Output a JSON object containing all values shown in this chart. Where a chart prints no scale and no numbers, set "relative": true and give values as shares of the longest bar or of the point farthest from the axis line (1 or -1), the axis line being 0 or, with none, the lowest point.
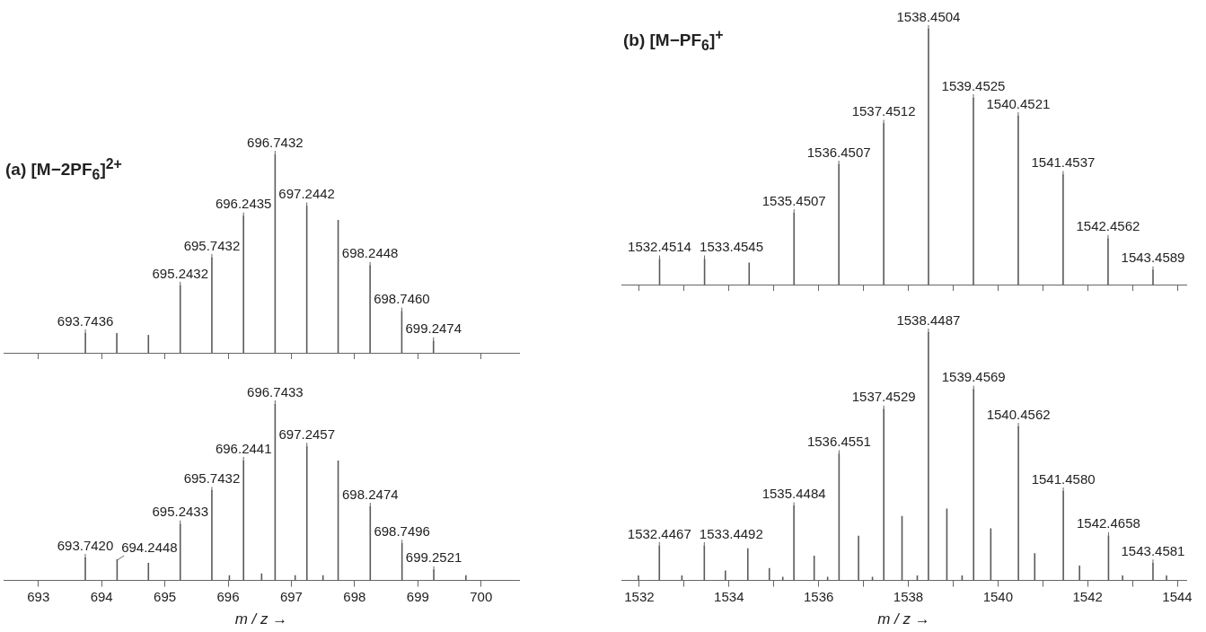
{
  "chart_data": [
    {
      "type": "bar",
      "title": "(a) [M−2PF$_{6}$]$^{2+}$",
      "relative": true,
      "color": "#5a5a5a",
      "tick_labels": false,
      "xlim": [
        692.45,
        700.6
      ],
      "xticks": [
        {
          "value": 693,
          "label": null
        },
        {
          "value": 694,
          "label": null
        },
        {
          "value": 695,
          "label": null
        },
        {
          "value": 696,
          "label": null
        },
        {
          "value": 697,
          "label": null
        },
        {
          "value": 698,
          "label": null
        },
        {
          "value": 699,
          "label": null
        },
        {
          "value": 700,
          "label": null
        }
      ],
      "x": [
        693.7436,
        694.24,
        694.74,
        695.2432,
        695.7432,
        696.2435,
        696.7432,
        697.2442,
        697.74,
        698.2448,
        698.746,
        699.2474
      ],
      "values": [
        0.1,
        0.1,
        0.09,
        0.34,
        0.48,
        0.69,
        1,
        0.74,
        0.67,
        0.44,
        0.21,
        0.06
      ],
      "annotations": [
        {
          "text": "693.7436",
          "x": 693.7436,
          "y": 0.1
        },
        {
          "text": "695.2432",
          "x": 695.2432,
          "y": 0.34
        },
        {
          "text": "695.7432",
          "x": 695.7432,
          "y": 0.48
        },
        {
          "text": "696.2435",
          "x": 696.2435,
          "y": 0.69
        },
        {
          "text": "696.7432",
          "x": 696.7432,
          "y": 1
        },
        {
          "text": "697.2442",
          "x": 697.2442,
          "y": 0.74
        },
        {
          "text": "698.2448",
          "x": 698.2448,
          "y": 0.44
        },
        {
          "text": "698.7460",
          "x": 698.746,
          "y": 0.21
        },
        {
          "text": "699.2474",
          "x": 699.2474,
          "y": 0.06
        }
      ]
    },
    {
      "type": "bar",
      "relative": true,
      "color": "#5a5a5a",
      "xlabel": "m / z →",
      "xlim": [
        692.45,
        700.6
      ],
      "xticks": [
        693,
        694,
        695,
        696,
        697,
        698,
        699,
        700
      ],
      "x": [
        693.742,
        694.2448,
        694.74,
        695.2433,
        695.7432,
        696.02,
        696.2441,
        696.53,
        696.7433,
        697.06,
        697.2457,
        697.5,
        697.74,
        698.2474,
        698.7496,
        699.2521,
        699.76
      ],
      "values": [
        0.13,
        0.12,
        0.1,
        0.32,
        0.51,
        0.03,
        0.68,
        0.04,
        1,
        0.03,
        0.76,
        0.03,
        0.68,
        0.42,
        0.21,
        0.06,
        0.03
      ],
      "annotations": [
        {
          "text": "693.7420",
          "x": 693.742,
          "y": 0.13
        },
        {
          "text": "694.2448",
          "x": 694.2448,
          "y": 0.12
        },
        {
          "text": "695.2433",
          "x": 695.2433,
          "y": 0.32
        },
        {
          "text": "695.7432",
          "x": 695.7432,
          "y": 0.51
        },
        {
          "text": "696.2441",
          "x": 696.2441,
          "y": 0.68
        },
        {
          "text": "696.7433",
          "x": 696.7433,
          "y": 1
        },
        {
          "text": "697.2457",
          "x": 697.2457,
          "y": 0.76
        },
        {
          "text": "698.2474",
          "x": 698.2474,
          "y": 0.42
        },
        {
          "text": "698.7496",
          "x": 698.7496,
          "y": 0.21
        },
        {
          "text": "699.2521",
          "x": 699.2521,
          "y": 0.06
        }
      ]
    },
    {
      "type": "bar",
      "title": "(b) [M−PF$_{6}$]$^{+}$",
      "relative": true,
      "color": "#5a5a5a",
      "tick_labels": false,
      "xlim": [
        1531.6,
        1544.2
      ],
      "xticks": [
        {
          "value": 1532,
          "label": null
        },
        {
          "value": 1533,
          "label": null
        },
        {
          "value": 1534,
          "label": null
        },
        {
          "value": 1535,
          "label": null
        },
        {
          "value": 1536,
          "label": null
        },
        {
          "value": 1537,
          "label": null
        },
        {
          "value": 1538,
          "label": null
        },
        {
          "value": 1539,
          "label": null
        },
        {
          "value": 1540,
          "label": null
        },
        {
          "value": 1541,
          "label": null
        },
        {
          "value": 1542,
          "label": null
        },
        {
          "value": 1543,
          "label": null
        },
        {
          "value": 1544,
          "label": null
        }
      ],
      "x": [
        1532.4514,
        1533.4545,
        1534.45,
        1535.4507,
        1536.4507,
        1537.4512,
        1538.4504,
        1539.4525,
        1540.4521,
        1541.4537,
        1542.4562,
        1543.4589
      ],
      "values": [
        0.1,
        0.1,
        0.086,
        0.28,
        0.47,
        0.63,
        1,
        0.73,
        0.66,
        0.43,
        0.18,
        0.057
      ],
      "annotations": [
        {
          "text": "1532.4514",
          "x": 1532.4514,
          "y": 0.1
        },
        {
          "text": "1533.4545",
          "x": 1533.4545,
          "y": 0.1
        },
        {
          "text": "1535.4507",
          "x": 1535.4507,
          "y": 0.28
        },
        {
          "text": "1536.4507",
          "x": 1536.4507,
          "y": 0.47
        },
        {
          "text": "1537.4512",
          "x": 1537.4512,
          "y": 0.63
        },
        {
          "text": "1538.4504",
          "x": 1538.4504,
          "y": 1
        },
        {
          "text": "1539.4525",
          "x": 1539.4525,
          "y": 0.73
        },
        {
          "text": "1540.4521",
          "x": 1540.4521,
          "y": 0.66
        },
        {
          "text": "1541.4537",
          "x": 1541.4537,
          "y": 0.43
        },
        {
          "text": "1542.4562",
          "x": 1542.4562,
          "y": 0.18
        },
        {
          "text": "1543.4589",
          "x": 1543.4589,
          "y": 0.057
        }
      ]
    },
    {
      "type": "bar",
      "relative": true,
      "color": "#5a5a5a",
      "xlabel": "m / z →",
      "xlim": [
        1531.6,
        1544.2
      ],
      "xticks": [
        1532,
        {
          "value": 1533,
          "label": null
        },
        1534,
        {
          "value": 1535,
          "label": null
        },
        1536,
        {
          "value": 1537,
          "label": null
        },
        1538,
        {
          "value": 1539,
          "label": null
        },
        1540,
        {
          "value": 1541,
          "label": null
        },
        1542,
        {
          "value": 1543,
          "label": null
        },
        1544
      ],
      "x": [
        1531.98,
        1532.4467,
        1532.95,
        1533.4492,
        1533.92,
        1534.42,
        1534.9,
        1535.2,
        1535.4484,
        1535.9,
        1536.2,
        1536.4551,
        1536.89,
        1537.2,
        1537.4529,
        1537.86,
        1538.2,
        1538.4487,
        1538.86,
        1539.2,
        1539.4569,
        1539.84,
        1540.4562,
        1540.82,
        1541.458,
        1541.82,
        1542.4658,
        1542.78,
        1543.4581,
        1543.76
      ],
      "values": [
        0.02,
        0.14,
        0.02,
        0.14,
        0.04,
        0.13,
        0.05,
        0.015,
        0.3,
        0.1,
        0.015,
        0.51,
        0.18,
        0.015,
        0.69,
        0.26,
        0.02,
        1,
        0.29,
        0.02,
        0.77,
        0.21,
        0.62,
        0.11,
        0.36,
        0.06,
        0.18,
        0.02,
        0.07,
        0.02
      ],
      "annotations": [
        {
          "text": "1532.4467",
          "x": 1532.4467,
          "y": 0.14
        },
        {
          "text": "1533.4492",
          "x": 1533.4492,
          "y": 0.14
        },
        {
          "text": "1535.4484",
          "x": 1535.4484,
          "y": 0.3
        },
        {
          "text": "1536.4551",
          "x": 1536.4551,
          "y": 0.51
        },
        {
          "text": "1537.4529",
          "x": 1537.4529,
          "y": 0.69
        },
        {
          "text": "1538.4487",
          "x": 1538.4487,
          "y": 1
        },
        {
          "text": "1539.4569",
          "x": 1539.4569,
          "y": 0.77
        },
        {
          "text": "1540.4562",
          "x": 1540.4562,
          "y": 0.62
        },
        {
          "text": "1541.4580",
          "x": 1541.458,
          "y": 0.36
        },
        {
          "text": "1542.4658",
          "x": 1542.4658,
          "y": 0.18
        },
        {
          "text": "1543.4581",
          "x": 1543.4581,
          "y": 0.07
        }
      ]
    }
  ]
}
